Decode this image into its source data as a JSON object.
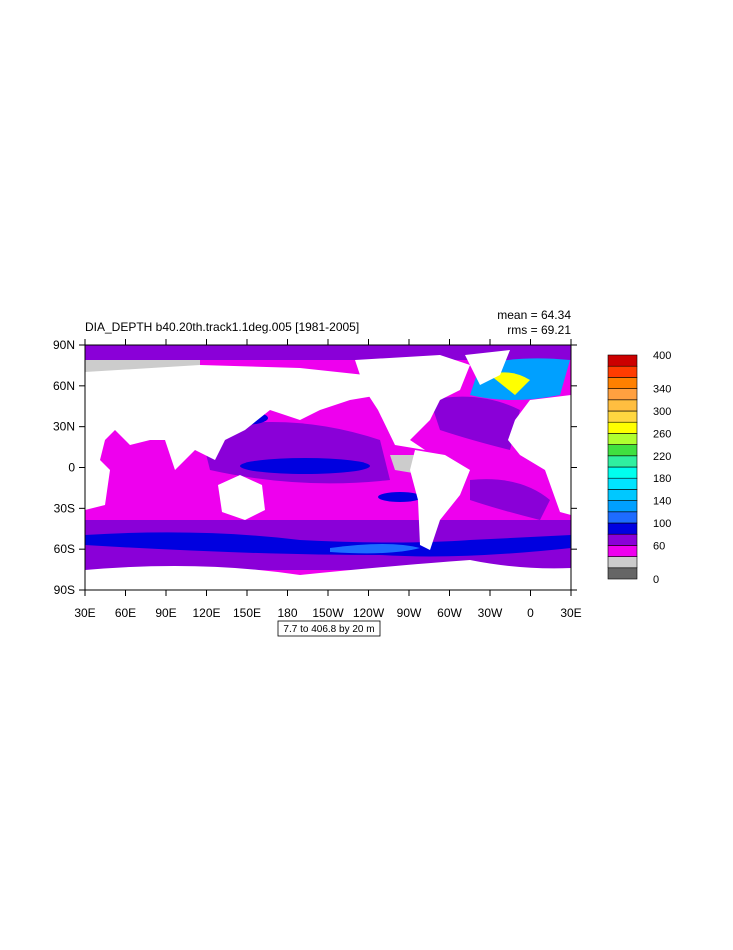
{
  "map": {
    "title": "DIA_DEPTH b40.20th.track1.1deg.005 [1981-2005]",
    "mean": "mean = 64.34",
    "rms": "rms = 69.21",
    "lon_labels": [
      "30E",
      "60E",
      "90E",
      "120E",
      "150E",
      "180",
      "150W",
      "120W",
      "90W",
      "60W",
      "30W",
      "0",
      "30E"
    ],
    "lat_labels": [
      "90N",
      "60N",
      "30N",
      "0",
      "30S",
      "60S",
      "90S"
    ],
    "contour_info": "7.7 to 406.8 by 20 m",
    "colorbar": {
      "range": [
        0,
        400
      ],
      "step": 20,
      "labels": [
        0,
        60,
        100,
        140,
        180,
        220,
        260,
        300,
        340,
        400
      ],
      "colors": [
        "#666666",
        "#cccccc",
        "#ee00ee",
        "#8a00d8",
        "#0000e0",
        "#1e6cff",
        "#00a0ff",
        "#00c8ff",
        "#00e4ff",
        "#00ffee",
        "#30f0a0",
        "#40e040",
        "#b0ff30",
        "#ffff00",
        "#ffd740",
        "#ffbe40",
        "#ffa040",
        "#ff8000",
        "#ff3c00",
        "#cc0000"
      ]
    }
  }
}
